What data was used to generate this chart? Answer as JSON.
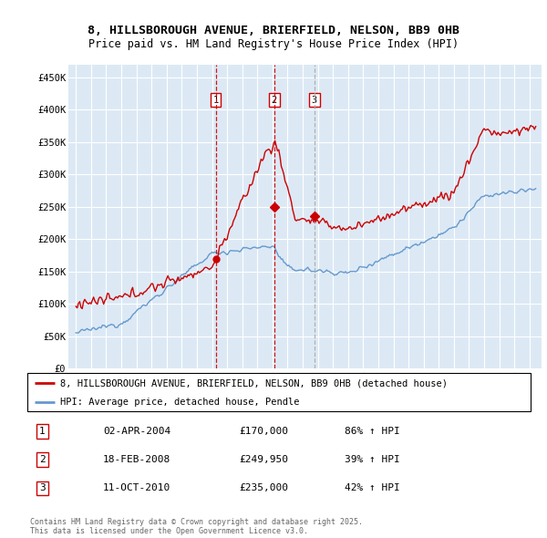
{
  "title_line1": "8, HILLSBOROUGH AVENUE, BRIERFIELD, NELSON, BB9 0HB",
  "title_line2": "Price paid vs. HM Land Registry's House Price Index (HPI)",
  "legend_red": "8, HILLSBOROUGH AVENUE, BRIERFIELD, NELSON, BB9 0HB (detached house)",
  "legend_blue": "HPI: Average price, detached house, Pendle",
  "transactions": [
    {
      "num": 1,
      "date": "02-APR-2004",
      "price": 170000,
      "pct": "86%",
      "dir": "↑",
      "ref": "HPI",
      "x_year": 2004.25,
      "line_color": "#cc0000",
      "line_style": "--"
    },
    {
      "num": 2,
      "date": "18-FEB-2008",
      "price": 249950,
      "pct": "39%",
      "dir": "↑",
      "ref": "HPI",
      "x_year": 2008.12,
      "line_color": "#cc0000",
      "line_style": "--"
    },
    {
      "num": 3,
      "date": "11-OCT-2010",
      "price": 235000,
      "pct": "42%",
      "dir": "↑",
      "ref": "HPI",
      "x_year": 2010.78,
      "line_color": "#aaaaaa",
      "line_style": "--"
    }
  ],
  "ylabel_ticks": [
    "£0",
    "£50K",
    "£100K",
    "£150K",
    "£200K",
    "£250K",
    "£300K",
    "£350K",
    "£400K",
    "£450K"
  ],
  "ytick_values": [
    0,
    50000,
    100000,
    150000,
    200000,
    250000,
    300000,
    350000,
    400000,
    450000
  ],
  "ylim": [
    0,
    470000
  ],
  "xlim_start": 1994.5,
  "xlim_end": 2025.8,
  "background_color": "#dce9f5",
  "red_color": "#cc0000",
  "blue_color": "#6699cc",
  "grid_color": "#ffffff",
  "footer_text": "Contains HM Land Registry data © Crown copyright and database right 2025.\nThis data is licensed under the Open Government Licence v3.0.",
  "sale1_y": 170000,
  "sale2_y": 249950,
  "sale3_y": 235000
}
